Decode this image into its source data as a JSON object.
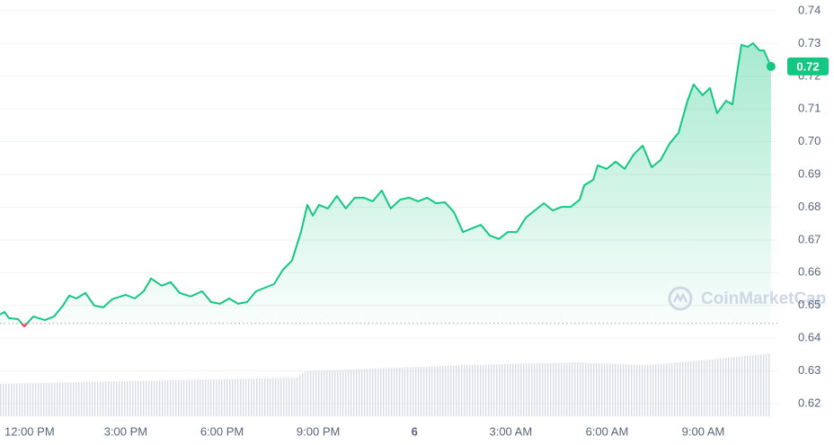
{
  "chart_data": {
    "type": "line",
    "x": [
      11.08,
      11.22,
      11.36,
      11.64,
      11.84,
      12.12,
      12.48,
      12.76,
      13.04,
      13.24,
      13.46,
      13.74,
      14.02,
      14.3,
      14.58,
      15,
      15.28,
      15.56,
      15.79,
      16.12,
      16.4,
      16.68,
      17.02,
      17.38,
      17.66,
      17.94,
      18.22,
      18.5,
      18.78,
      19.06,
      19.34,
      19.62,
      19.9,
      20.18,
      20.46,
      20.66,
      20.83,
      21.02,
      21.3,
      21.58,
      21.86,
      22.14,
      22.42,
      22.7,
      22.98,
      23.26,
      23.55,
      23.83,
      24.11,
      24.39,
      24.67,
      24.95,
      25.23,
      25.51,
      25.79,
      26.07,
      26.35,
      26.63,
      26.91,
      27.19,
      27.47,
      27.75,
      28.03,
      28.31,
      28.59,
      28.87,
      29.15,
      29.29,
      29.57,
      29.71,
      29.99,
      30.27,
      30.55,
      30.83,
      31.11,
      31.39,
      31.67,
      31.95,
      32.23,
      32.51,
      32.7,
      32.98,
      33.21,
      33.43,
      33.71,
      33.91,
      34.05,
      34.19,
      34.39,
      34.55,
      34.75,
      34.89,
      35.11
    ],
    "series": [
      {
        "color": "#16c784",
        "below_color": "#ea3943",
        "values": [
          0.6472,
          0.648,
          0.6461,
          0.6458,
          0.6436,
          0.6466,
          0.6455,
          0.6466,
          0.6499,
          0.653,
          0.6521,
          0.6538,
          0.6499,
          0.6494,
          0.6519,
          0.6532,
          0.6521,
          0.6543,
          0.6582,
          0.656,
          0.6571,
          0.6538,
          0.6527,
          0.6543,
          0.651,
          0.6505,
          0.6521,
          0.6505,
          0.651,
          0.6543,
          0.6554,
          0.6565,
          0.6609,
          0.6637,
          0.6724,
          0.6807,
          0.6774,
          0.6807,
          0.6796,
          0.6834,
          0.6796,
          0.6829,
          0.6829,
          0.6818,
          0.6851,
          0.6796,
          0.6823,
          0.6829,
          0.6818,
          0.6829,
          0.6812,
          0.6815,
          0.6785,
          0.6724,
          0.6735,
          0.6746,
          0.6713,
          0.6703,
          0.6724,
          0.6724,
          0.6768,
          0.679,
          0.6812,
          0.679,
          0.6801,
          0.6801,
          0.6823,
          0.6867,
          0.6884,
          0.6928,
          0.6917,
          0.6939,
          0.6917,
          0.6961,
          0.6988,
          0.6922,
          0.6944,
          0.6994,
          0.7027,
          0.7125,
          0.7175,
          0.7142,
          0.7164,
          0.7087,
          0.7125,
          0.7114,
          0.7208,
          0.7296,
          0.729,
          0.7301,
          0.7279,
          0.7279,
          0.723
        ]
      }
    ],
    "baseline": 0.6445,
    "current_price": "0.72",
    "watermark": "CoinMarketCap",
    "xlim": [
      11.08,
      35.31
    ],
    "xticks": [
      {
        "value": 12,
        "label": "12:00 PM"
      },
      {
        "value": 15,
        "label": "3:00 PM"
      },
      {
        "value": 18,
        "label": "6:00 PM"
      },
      {
        "value": 21,
        "label": "9:00 PM"
      },
      {
        "value": 24,
        "label": "6"
      },
      {
        "value": 27,
        "label": "3:00 AM"
      },
      {
        "value": 30,
        "label": "6:00 AM"
      },
      {
        "value": 33,
        "label": "9:00 AM"
      }
    ],
    "ylim": [
      0.6164,
      0.7433
    ],
    "yticks": [
      0.62,
      0.63,
      0.64,
      0.65,
      0.66,
      0.67,
      0.68,
      0.69,
      {
        "value": 0.7,
        "label": "0.70"
      },
      0.71,
      0.72,
      0.73,
      0.74
    ],
    "grid": true
  }
}
